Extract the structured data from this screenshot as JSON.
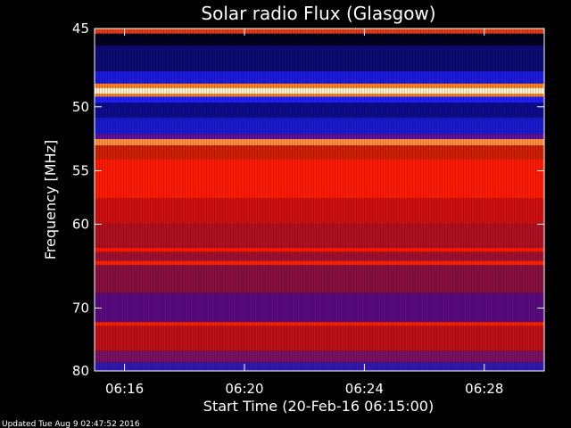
{
  "chart_data": {
    "type": "heatmap",
    "title": "Solar radio Flux (Glasgow)",
    "xlabel": "Start Time (20-Feb-16 06:15:00)",
    "ylabel": "Frequency [MHz]",
    "x_ticks": [
      "06:16",
      "06:20",
      "06:24",
      "06:28"
    ],
    "x_tick_minutes": [
      1,
      5,
      9,
      13
    ],
    "xlim_minutes": [
      0,
      15
    ],
    "y_ticks": [
      45,
      50,
      55,
      60,
      70,
      80
    ],
    "ylim": [
      45,
      80
    ],
    "y_scale": "reciprocal",
    "grid": false,
    "colormap": "dark-blue to red to yellow-white",
    "frequency_bands": [
      {
        "from": 45.0,
        "to": 45.3,
        "color": "#e63a15"
      },
      {
        "from": 45.3,
        "to": 46.0,
        "color": "#00001e"
      },
      {
        "from": 46.0,
        "to": 47.6,
        "color": "#0a0a72"
      },
      {
        "from": 47.6,
        "to": 48.4,
        "color": "#1b1be0"
      },
      {
        "from": 48.4,
        "to": 48.7,
        "color": "#ff8020"
      },
      {
        "from": 48.7,
        "to": 49.1,
        "color": "#fff0d0"
      },
      {
        "from": 49.1,
        "to": 49.3,
        "color": "#ff8020"
      },
      {
        "from": 49.3,
        "to": 49.7,
        "color": "#2020ff"
      },
      {
        "from": 49.7,
        "to": 50.8,
        "color": "#0c0c8c"
      },
      {
        "from": 50.8,
        "to": 52.0,
        "color": "#1a1ad0"
      },
      {
        "from": 52.0,
        "to": 52.4,
        "color": "#6010a0"
      },
      {
        "from": 52.4,
        "to": 52.9,
        "color": "#ff9040"
      },
      {
        "from": 52.9,
        "to": 54.0,
        "color": "#d02000"
      },
      {
        "from": 54.0,
        "to": 57.5,
        "color": "#ff1a00"
      },
      {
        "from": 57.5,
        "to": 60.0,
        "color": "#d01010"
      },
      {
        "from": 60.0,
        "to": 62.5,
        "color": "#b01020"
      },
      {
        "from": 62.5,
        "to": 63.0,
        "color": "#ff1a00"
      },
      {
        "from": 63.0,
        "to": 64.0,
        "color": "#a01030"
      },
      {
        "from": 64.0,
        "to": 64.5,
        "color": "#ff2000"
      },
      {
        "from": 64.5,
        "to": 68.0,
        "color": "#8a1040"
      },
      {
        "from": 68.0,
        "to": 72.0,
        "color": "#5a0a80"
      },
      {
        "from": 72.0,
        "to": 72.6,
        "color": "#ff2000"
      },
      {
        "from": 72.6,
        "to": 76.5,
        "color": "#c01018"
      },
      {
        "from": 76.5,
        "to": 78.5,
        "color": "#7a1060"
      },
      {
        "from": 78.5,
        "to": 80.0,
        "color": "#3018b0"
      }
    ]
  },
  "footer": {
    "updated": "Updated Tue Aug  9 02:47:52 2016"
  }
}
